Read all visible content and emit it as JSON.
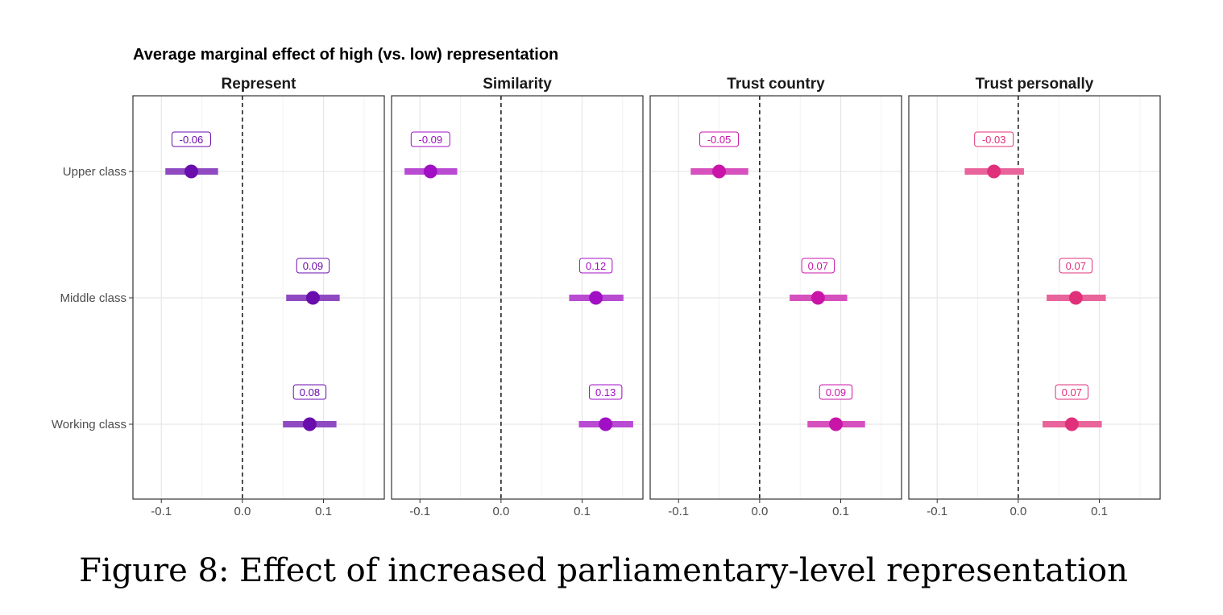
{
  "chart_data": {
    "type": "dot-errorbar",
    "title": "Average marginal effect of high (vs. low) representation",
    "facets": [
      "Represent",
      "Similarity",
      "Trust country",
      "Trust personally"
    ],
    "facet_colors": [
      "#6a0dad",
      "#a10fc4",
      "#c815a8",
      "#e0307a"
    ],
    "categories": [
      "Upper class",
      "Middle class",
      "Working class"
    ],
    "x_ticks": [
      "-0.1",
      "0.0",
      "0.1"
    ],
    "xlim": [
      -0.135,
      0.175
    ],
    "reference_line": 0,
    "grid": true,
    "series": [
      {
        "name": "Represent",
        "points": [
          {
            "category": "Upper class",
            "estimate": -0.063,
            "ci_low": -0.095,
            "ci_high": -0.03,
            "label": "-0.06"
          },
          {
            "category": "Middle class",
            "estimate": 0.087,
            "ci_low": 0.054,
            "ci_high": 0.12,
            "label": "0.09"
          },
          {
            "category": "Working class",
            "estimate": 0.083,
            "ci_low": 0.05,
            "ci_high": 0.116,
            "label": "0.08"
          }
        ]
      },
      {
        "name": "Similarity",
        "points": [
          {
            "category": "Upper class",
            "estimate": -0.087,
            "ci_low": -0.119,
            "ci_high": -0.054,
            "label": "-0.09"
          },
          {
            "category": "Middle class",
            "estimate": 0.117,
            "ci_low": 0.084,
            "ci_high": 0.151,
            "label": "0.12"
          },
          {
            "category": "Working class",
            "estimate": 0.129,
            "ci_low": 0.096,
            "ci_high": 0.163,
            "label": "0.13"
          }
        ]
      },
      {
        "name": "Trust country",
        "points": [
          {
            "category": "Upper class",
            "estimate": -0.05,
            "ci_low": -0.085,
            "ci_high": -0.014,
            "label": "-0.05"
          },
          {
            "category": "Middle class",
            "estimate": 0.072,
            "ci_low": 0.037,
            "ci_high": 0.108,
            "label": "0.07"
          },
          {
            "category": "Working class",
            "estimate": 0.094,
            "ci_low": 0.059,
            "ci_high": 0.13,
            "label": "0.09"
          }
        ]
      },
      {
        "name": "Trust personally",
        "points": [
          {
            "category": "Upper class",
            "estimate": -0.03,
            "ci_low": -0.066,
            "ci_high": 0.007,
            "label": "-0.03"
          },
          {
            "category": "Middle class",
            "estimate": 0.071,
            "ci_low": 0.035,
            "ci_high": 0.108,
            "label": "0.07"
          },
          {
            "category": "Working class",
            "estimate": 0.066,
            "ci_low": 0.03,
            "ci_high": 0.103,
            "label": "0.07"
          }
        ]
      }
    ]
  },
  "caption": "Figure 8: Effect of increased parliamentary-level representation"
}
